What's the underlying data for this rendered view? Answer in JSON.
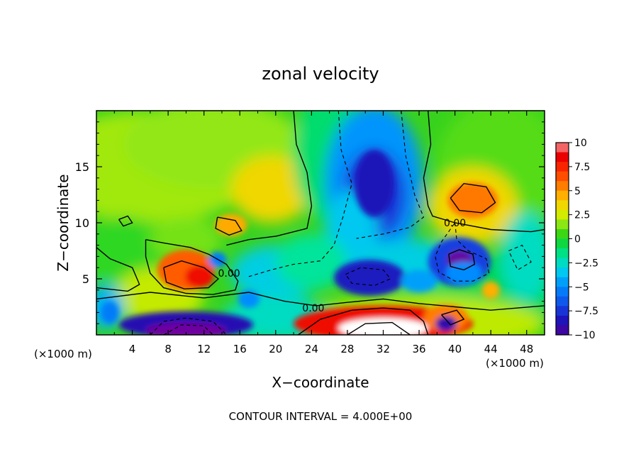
{
  "chart_data": {
    "type": "heatmap",
    "title": "zonal velocity",
    "xlabel": "X−coordinate",
    "ylabel": "Z−coordinate",
    "x_unit_left": "(×1000 m)",
    "x_unit_right": "(×1000 m)",
    "footer": "CONTOUR INTERVAL = 4.000E+00",
    "xlim": [
      0,
      50
    ],
    "ylim": [
      0,
      20
    ],
    "x_ticks": [
      "4",
      "8",
      "12",
      "16",
      "20",
      "24",
      "28",
      "32",
      "36",
      "40",
      "44",
      "48"
    ],
    "y_ticks": [
      "5",
      "10",
      "15"
    ],
    "colorbar_ticks": [
      "10",
      "7.5",
      "5",
      "2.5",
      "0",
      "−2.5",
      "−5",
      "−7.5",
      "−10"
    ],
    "clim": [
      -10,
      10
    ],
    "contour_labels": [
      {
        "text": "0.00",
        "x": 40.0,
        "y": 10.0
      },
      {
        "text": "0.00",
        "x": 24.2,
        "y": 2.4
      },
      {
        "text": "0.00",
        "x": 14.8,
        "y": 5.5
      }
    ],
    "features": [
      {
        "name": "negative jet aloft",
        "x": 31,
        "y": 13,
        "value": -8
      },
      {
        "name": "positive core aloft",
        "x": 42,
        "y": 12,
        "value": 5.5
      },
      {
        "name": "negative cell",
        "x": 40.5,
        "y": 6.7,
        "value": -10
      },
      {
        "name": "negative cell",
        "x": 30.5,
        "y": 5.1,
        "value": -8.5
      },
      {
        "name": "positive low-level jet",
        "x": 10,
        "y": 5.5,
        "value": 7
      },
      {
        "name": "positive near surface",
        "x": 32,
        "y": 0.8,
        "value": 11
      },
      {
        "name": "negative near surface",
        "x": 10,
        "y": 0.6,
        "value": -10
      },
      {
        "name": "positive weak",
        "x": 19.5,
        "y": 13,
        "value": 3.5
      },
      {
        "name": "positive weak",
        "x": 15,
        "y": 9.5,
        "value": 4.5
      }
    ]
  }
}
